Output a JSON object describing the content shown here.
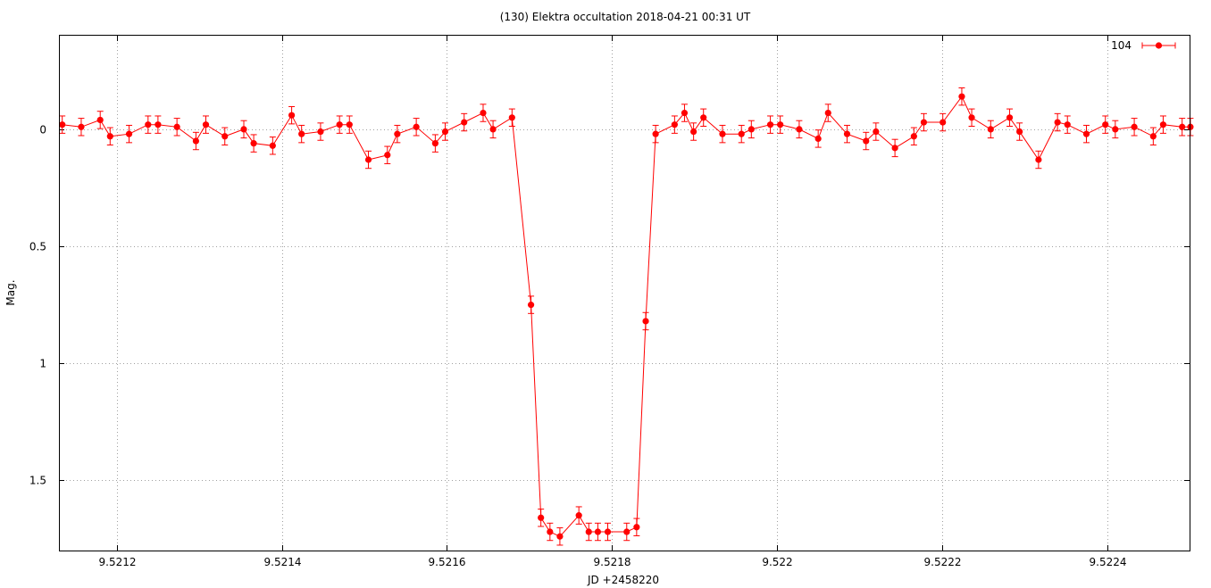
{
  "chart_data": {
    "type": "scatter",
    "title": "(130) Elektra occultation 2018-04-21 00:31 UT",
    "xlabel": "JD +2458220",
    "ylabel": "Mag.",
    "xlim": [
      9.52113,
      9.5225
    ],
    "ylim": [
      1.8,
      -0.4
    ],
    "y_inverted": true,
    "grid": true,
    "legend_position": "top-right",
    "x_ticks": [
      {
        "value": 9.5212,
        "label": "9.5212"
      },
      {
        "value": 9.5214,
        "label": "9.5214"
      },
      {
        "value": 9.5216,
        "label": "9.5216"
      },
      {
        "value": 9.5218,
        "label": "9.5218"
      },
      {
        "value": 9.522,
        "label": "9.522"
      },
      {
        "value": 9.5222,
        "label": "9.5222"
      },
      {
        "value": 9.5224,
        "label": "9.5224"
      }
    ],
    "y_ticks": [
      {
        "value": 0,
        "label": "0"
      },
      {
        "value": 0.5,
        "label": "0.5"
      },
      {
        "value": 1,
        "label": "1"
      },
      {
        "value": 1.5,
        "label": "1.5"
      }
    ],
    "series": [
      {
        "name": "104",
        "color": "#ff0000",
        "error": 0.037,
        "x": [
          9.521134,
          9.521157,
          9.52118,
          9.521192,
          9.521215,
          9.521238,
          9.52125,
          9.521273,
          9.521296,
          9.521308,
          9.521331,
          9.521354,
          9.521366,
          9.521389,
          9.521412,
          9.521424,
          9.521447,
          9.52147,
          9.521482,
          9.521505,
          9.521528,
          9.52154,
          9.521563,
          9.521586,
          9.521598,
          9.521621,
          9.521644,
          9.521656,
          9.521679,
          9.521702,
          9.521714,
          9.521725,
          9.521737,
          9.52176,
          9.521772,
          9.521783,
          9.521795,
          9.521818,
          9.52183,
          9.521841,
          9.521853,
          9.521876,
          9.521888,
          9.521899,
          9.521911,
          9.521934,
          9.521957,
          9.521969,
          9.521992,
          9.522004,
          9.522027,
          9.52205,
          9.522062,
          9.522085,
          9.522108,
          9.52212,
          9.522143,
          9.522166,
          9.522178,
          9.522201,
          9.522224,
          9.522236,
          9.522259,
          9.522282,
          9.522294,
          9.522317,
          9.52234,
          9.522352,
          9.522375,
          9.522398,
          9.52241,
          9.522433,
          9.522456,
          9.522468,
          9.522491,
          9.522501
        ],
        "y": [
          -0.02,
          -0.01,
          -0.04,
          0.03,
          0.02,
          -0.02,
          -0.02,
          -0.01,
          0.05,
          -0.02,
          0.03,
          0.0,
          0.06,
          0.07,
          -0.06,
          0.02,
          0.01,
          -0.02,
          -0.02,
          0.13,
          0.11,
          0.02,
          -0.01,
          0.06,
          0.01,
          -0.03,
          -0.07,
          0.0,
          -0.05,
          0.75,
          1.66,
          1.72,
          1.74,
          1.65,
          1.72,
          1.72,
          1.72,
          1.72,
          1.7,
          0.82,
          0.02,
          -0.02,
          -0.07,
          0.01,
          -0.05,
          0.02,
          0.02,
          0.0,
          -0.02,
          -0.02,
          0.0,
          0.04,
          -0.07,
          0.02,
          0.05,
          0.01,
          0.08,
          0.03,
          -0.03,
          -0.03,
          -0.14,
          -0.05,
          0.0,
          -0.05,
          0.01,
          0.13,
          -0.03,
          -0.02,
          0.02,
          -0.02,
          0.0,
          -0.01,
          0.03,
          -0.02,
          -0.01,
          -0.01
        ]
      }
    ]
  }
}
